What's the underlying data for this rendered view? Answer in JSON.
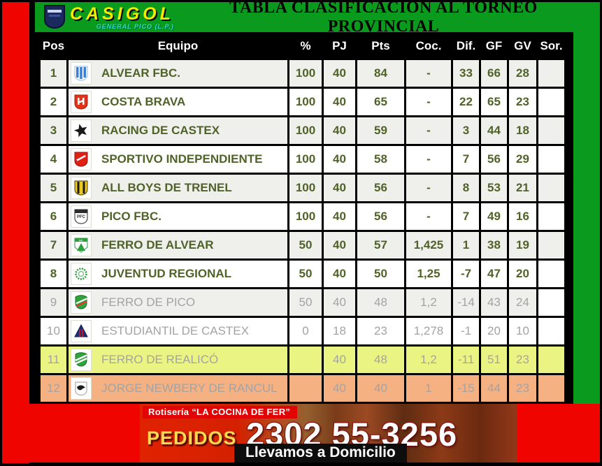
{
  "brand": {
    "name": "CASIGOL",
    "location": "GENERAL PICO (L.P.)",
    "shield_icon": "casigol-shield-icon"
  },
  "title": "TABLA CLASIFICACIÓN AL TORNEO PROVINCIAL",
  "chart_data": {
    "type": "table",
    "columns": [
      "Pos",
      "Equipo",
      "%",
      "PJ",
      "Pts",
      "Coc.",
      "Dif.",
      "GF",
      "GV",
      "Sor."
    ],
    "rows": [
      {
        "pos": "1",
        "team": "ALVEAR FBC.",
        "icon": "alvear-fbc-crest-icon",
        "pct": "100",
        "pj": "40",
        "pts": "84",
        "coc": "-",
        "dif": "33",
        "gf": "66",
        "gv": "28",
        "sor": "",
        "state": "active",
        "highlight": "none"
      },
      {
        "pos": "2",
        "team": "COSTA BRAVA",
        "icon": "costa-brava-crest-icon",
        "pct": "100",
        "pj": "40",
        "pts": "65",
        "coc": "-",
        "dif": "22",
        "gf": "65",
        "gv": "23",
        "sor": "",
        "state": "active",
        "highlight": "none"
      },
      {
        "pos": "3",
        "team": "RACING DE CASTEX",
        "icon": "racing-castex-star-icon",
        "pct": "100",
        "pj": "40",
        "pts": "59",
        "coc": "-",
        "dif": "3",
        "gf": "44",
        "gv": "18",
        "sor": "",
        "state": "active",
        "highlight": "none"
      },
      {
        "pos": "4",
        "team": "SPORTIVO INDEPENDIENTE",
        "icon": "sportivo-independiente-crest-icon",
        "pct": "100",
        "pj": "40",
        "pts": "58",
        "coc": "-",
        "dif": "7",
        "gf": "56",
        "gv": "29",
        "sor": "",
        "state": "active",
        "highlight": "none"
      },
      {
        "pos": "5",
        "team": "ALL BOYS DE TRENEL",
        "icon": "all-boys-trenel-crest-icon",
        "pct": "100",
        "pj": "40",
        "pts": "56",
        "coc": "-",
        "dif": "8",
        "gf": "53",
        "gv": "21",
        "sor": "",
        "state": "active",
        "highlight": "none"
      },
      {
        "pos": "6",
        "team": "PICO FBC.",
        "icon": "pico-fbc-crest-icon",
        "pct": "100",
        "pj": "40",
        "pts": "56",
        "coc": "-",
        "dif": "7",
        "gf": "49",
        "gv": "16",
        "sor": "",
        "state": "active",
        "highlight": "none"
      },
      {
        "pos": "7",
        "team": "FERRO DE ALVEAR",
        "icon": "ferro-alvear-crest-icon",
        "pct": "50",
        "pj": "40",
        "pts": "57",
        "coc": "1,425",
        "dif": "1",
        "gf": "38",
        "gv": "19",
        "sor": "",
        "state": "active",
        "highlight": "none"
      },
      {
        "pos": "8",
        "team": "JUVENTUD REGIONAL",
        "icon": "juventud-regional-wreath-icon",
        "pct": "50",
        "pj": "40",
        "pts": "50",
        "coc": "1,25",
        "dif": "-7",
        "gf": "47",
        "gv": "20",
        "sor": "",
        "state": "active",
        "highlight": "none"
      },
      {
        "pos": "9",
        "team": "FERRO DE PICO",
        "icon": "ferro-pico-crest-icon",
        "pct": "50",
        "pj": "40",
        "pts": "48",
        "coc": "1,2",
        "dif": "-14",
        "gf": "43",
        "gv": "24",
        "sor": "",
        "state": "grayed",
        "highlight": "none"
      },
      {
        "pos": "10",
        "team": "ESTUDIANTIL DE CASTEX",
        "icon": "estudiantil-castex-triangle-icon",
        "pct": "0",
        "pj": "18",
        "pts": "23",
        "coc": "1,278",
        "dif": "-1",
        "gf": "20",
        "gv": "10",
        "sor": "",
        "state": "grayed",
        "highlight": "none"
      },
      {
        "pos": "11",
        "team": "FERRO DE REALICÓ",
        "icon": "ferro-realico-crest-icon",
        "pct": "",
        "pj": "40",
        "pts": "48",
        "coc": "1,2",
        "dif": "-11",
        "gf": "51",
        "gv": "23",
        "sor": "",
        "state": "grayed",
        "highlight": "yellow"
      },
      {
        "pos": "12",
        "team": "JORGE NEWBERY DE RANCUL",
        "icon": "jorge-newbery-crest-icon",
        "pct": "",
        "pj": "40",
        "pts": "40",
        "coc": "1",
        "dif": "-15",
        "gf": "44",
        "gv": "23",
        "sor": "",
        "state": "grayed",
        "highlight": "orange"
      }
    ]
  },
  "ad": {
    "shop_name": "Rotisería “LA COCINA DE FER”",
    "orders_label": "PEDIDOS",
    "phone": "2302 55-3256",
    "delivery_note": "Llevamos a Domicilio"
  },
  "colors": {
    "frame_green": "#0a9a1e",
    "frame_red": "#f00400",
    "active_text": "#4f6228",
    "grayed_text": "#a3a3a3",
    "striped_row_bg": "#efefec",
    "yellow_row_bg": "#eaf483",
    "orange_row_bg": "#f6b183",
    "brand_yellow": "#f4ec00",
    "brand_cyan": "#27e2c4"
  }
}
